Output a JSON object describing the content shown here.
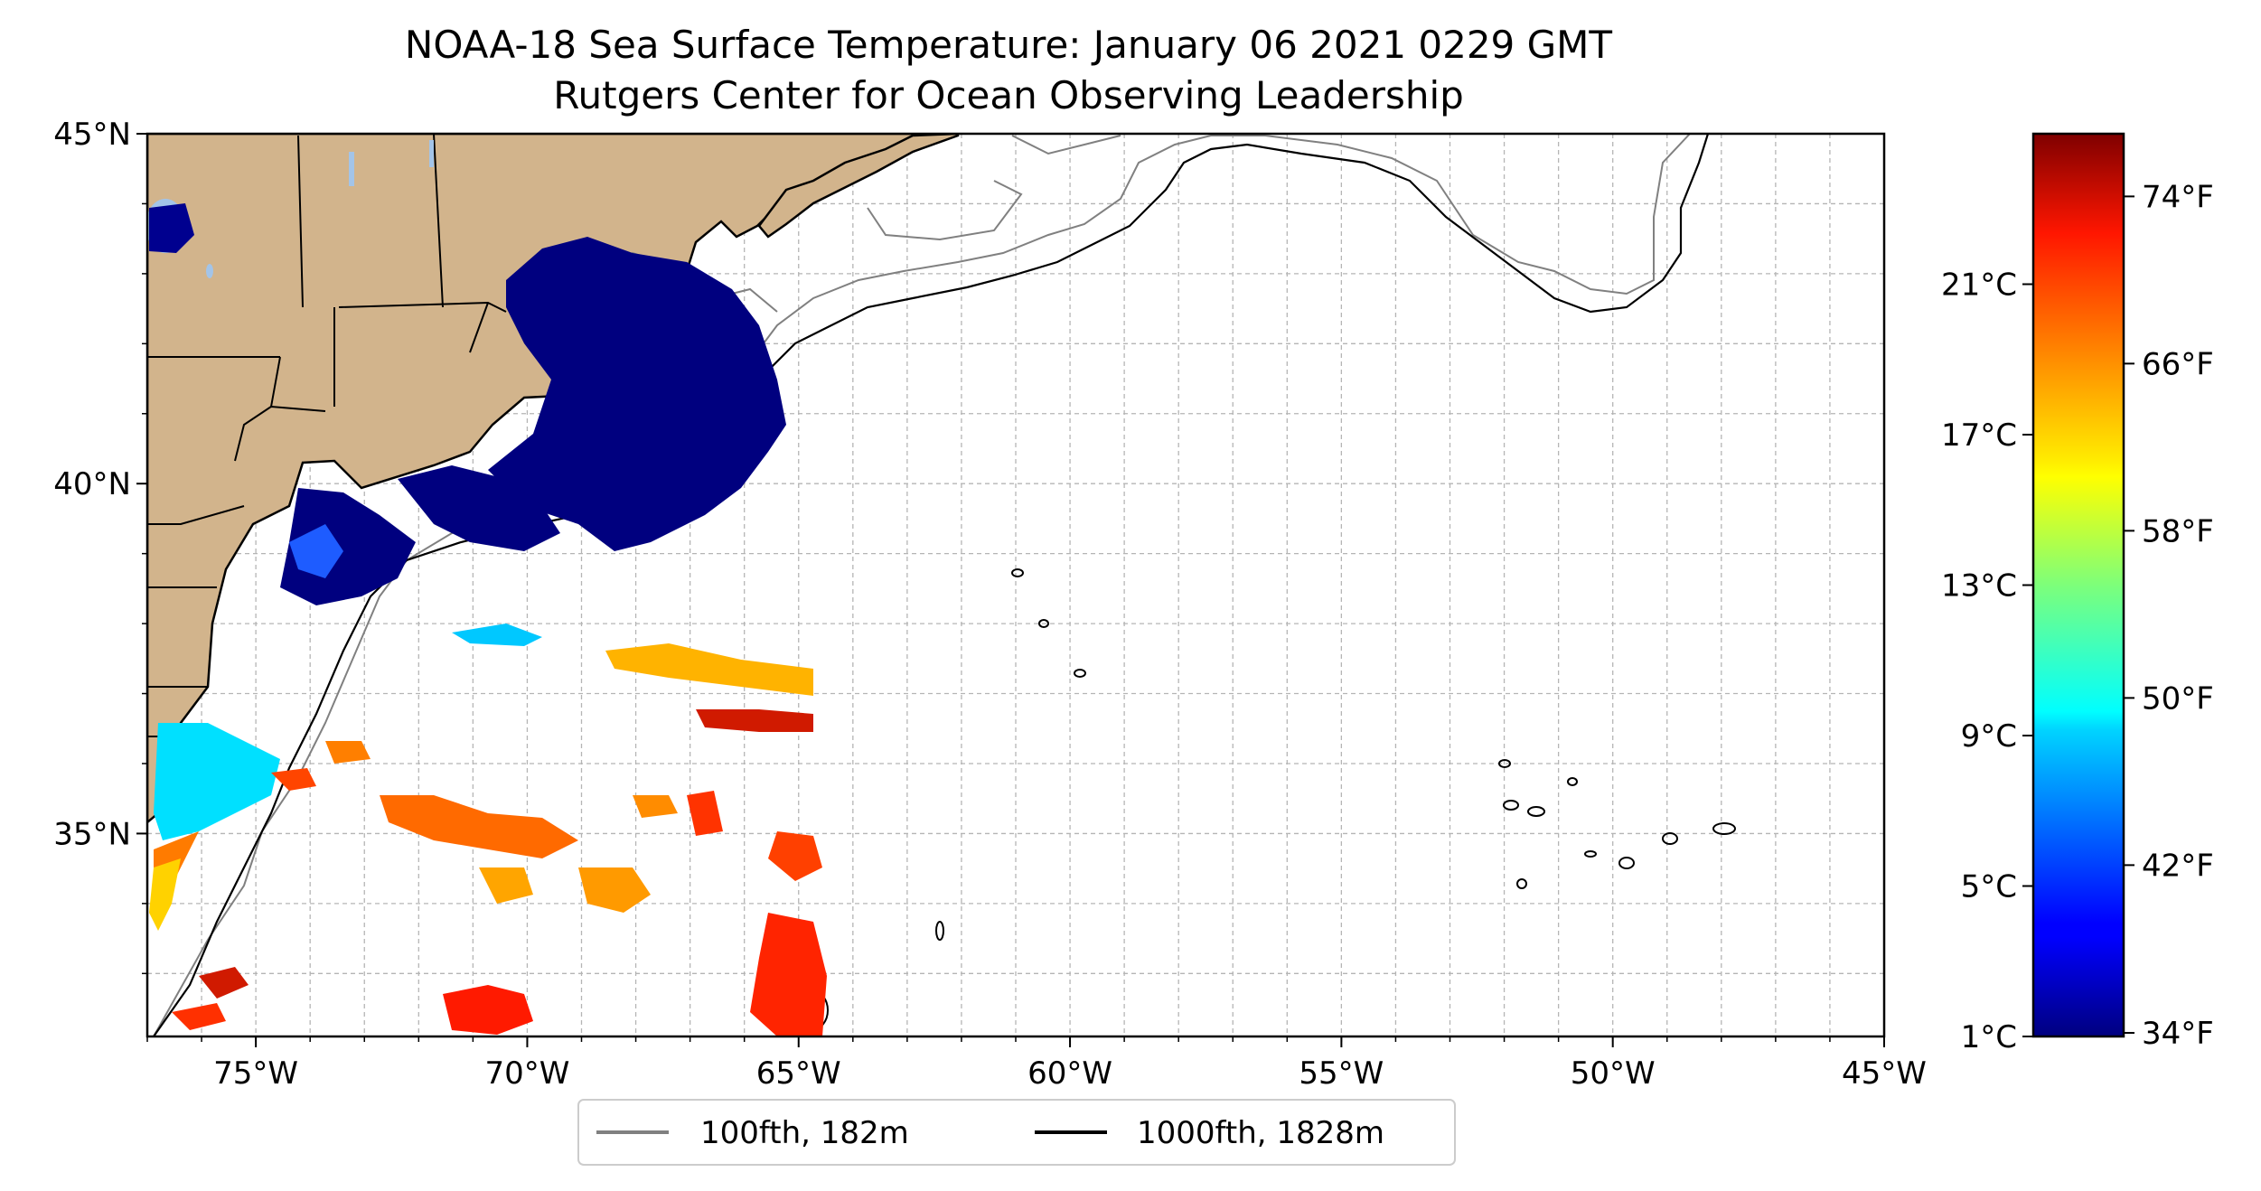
{
  "title": {
    "line1": "NOAA-18 Sea Surface Temperature: January 06 2021 0229 GMT",
    "line2": "Rutgers Center for Ocean Observing Leadership"
  },
  "map": {
    "lon_range": [
      -77,
      -45
    ],
    "lat_range": [
      32.1,
      45
    ],
    "lon_ticks": [
      {
        "value": -75,
        "label": "75°W"
      },
      {
        "value": -70,
        "label": "70°W"
      },
      {
        "value": -65,
        "label": "65°W"
      },
      {
        "value": -60,
        "label": "60°W"
      },
      {
        "value": -55,
        "label": "55°W"
      },
      {
        "value": -50,
        "label": "50°W"
      },
      {
        "value": -45,
        "label": "45°W"
      }
    ],
    "lat_ticks": [
      {
        "value": 45,
        "label": "45°N"
      },
      {
        "value": 40,
        "label": "40°N"
      },
      {
        "value": 35,
        "label": "35°N"
      }
    ],
    "grid": true,
    "land_color": "#d2b48c",
    "lake_color": "#a3c4e8"
  },
  "legend": {
    "placement": "below-center",
    "items": [
      {
        "label": "100fth, 182m",
        "color": "#808080"
      },
      {
        "label": "1000fth, 1828m",
        "color": "#000000"
      }
    ]
  },
  "colorbar": {
    "colormap": "jet",
    "celsius_ticks": [
      "1°C",
      "5°C",
      "9°C",
      "13°C",
      "17°C",
      "21°C"
    ],
    "fahrenheit_ticks": [
      "34°F",
      "42°F",
      "50°F",
      "58°F",
      "66°F",
      "74°F"
    ],
    "celsius_values": [
      1,
      5,
      9,
      13,
      17,
      21
    ],
    "fahrenheit_values": [
      34,
      42,
      50,
      58,
      66,
      74
    ]
  }
}
